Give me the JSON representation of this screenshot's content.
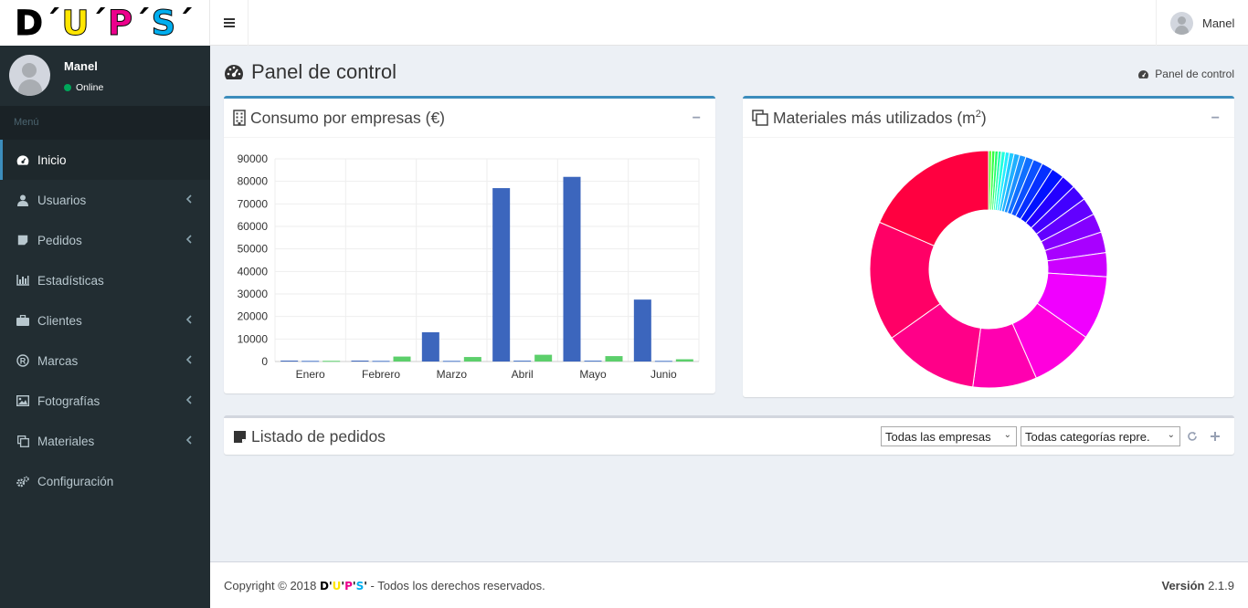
{
  "brand": {
    "logo_parts": [
      {
        "text": "D",
        "color": "#000000"
      },
      {
        "text": "´",
        "color": "#000000"
      },
      {
        "text": "U",
        "color": "#ffe600"
      },
      {
        "text": "´",
        "color": "#000000"
      },
      {
        "text": "P",
        "color": "#ec008c"
      },
      {
        "text": "´",
        "color": "#000000"
      },
      {
        "text": "S",
        "color": "#00aeef"
      },
      {
        "text": "´",
        "color": "#000000"
      }
    ]
  },
  "navbar": {
    "user_name": "Manel"
  },
  "sidebar": {
    "user_name": "Manel",
    "status": "Online",
    "menu_header": "Menú",
    "items": [
      {
        "label": "Inicio",
        "icon": "dashboard-icon",
        "active": true,
        "caret": false
      },
      {
        "label": "Usuarios",
        "icon": "user-icon",
        "active": false,
        "caret": true
      },
      {
        "label": "Pedidos",
        "icon": "sticky-note-icon",
        "active": false,
        "caret": true
      },
      {
        "label": "Estadísticas",
        "icon": "bar-chart-icon",
        "active": false,
        "caret": false
      },
      {
        "label": "Clientes",
        "icon": "briefcase-icon",
        "active": false,
        "caret": true
      },
      {
        "label": "Marcas",
        "icon": "registered-icon",
        "active": false,
        "caret": true
      },
      {
        "label": "Fotografías",
        "icon": "image-icon",
        "active": false,
        "caret": true
      },
      {
        "label": "Materiales",
        "icon": "clone-icon",
        "active": false,
        "caret": true
      },
      {
        "label": "Configuración",
        "icon": "cogs-icon",
        "active": false,
        "caret": false
      }
    ]
  },
  "page": {
    "title": "Panel de control",
    "breadcrumb": "Panel de control"
  },
  "consumo_box": {
    "title": "Consumo por empresas (€)",
    "collapse_label": "−"
  },
  "materiales_box": {
    "title_main": "Materiales más utilizados (m",
    "title_sup": "2",
    "title_end": ")",
    "collapse_label": "−"
  },
  "pedidos_box": {
    "title": "Listado de pedidos",
    "filter_empresas": "Todas las empresas",
    "filter_categorias": "Todas categorías repre.",
    "refresh_icon": "refresh-icon",
    "add_icon": "plus-icon"
  },
  "footer": {
    "copyright": "Copyright © 2018",
    "rights": " - Todos los derechos reservados.",
    "version_label": "Versión",
    "version_value": "2.1.9"
  },
  "chart_data": [
    {
      "type": "bar",
      "categories": [
        "Enero",
        "Febrero",
        "Marzo",
        "Abril",
        "Mayo",
        "Junio"
      ],
      "ylim": [
        0,
        90000
      ],
      "yticks": [
        0,
        10000,
        20000,
        30000,
        40000,
        50000,
        60000,
        70000,
        80000,
        90000
      ],
      "grid": true,
      "series": [
        {
          "color": "#3c66bd",
          "values": [
            400,
            400,
            13000,
            77000,
            82000,
            27500
          ]
        },
        {
          "color": "#4a78cc",
          "values": [
            300,
            300,
            300,
            400,
            400,
            300
          ]
        },
        {
          "color": "#5ccf6b",
          "values": [
            300,
            2200,
            2000,
            3000,
            2400,
            1000
          ]
        }
      ]
    },
    {
      "type": "pie",
      "donut": true,
      "values": [
        0.4,
        0.4,
        0.4,
        0.4,
        0.5,
        0.5,
        0.6,
        0.7,
        0.8,
        1.0,
        1.2,
        1.4,
        1.6,
        1.8,
        2.0,
        2.2,
        2.4,
        2.6,
        3.0,
        8.0,
        8.0,
        8.0,
        12.0,
        15.0,
        17.0
      ],
      "colors": [
        "#66ff33",
        "#33ff44",
        "#22ff66",
        "#22ffaa",
        "#22ffdd",
        "#22eeff",
        "#22ccff",
        "#1fb0ff",
        "#1a90ff",
        "#1070ff",
        "#0b50ff",
        "#0530ff",
        "#0012ff",
        "#2400ff",
        "#4200ff",
        "#6200ff",
        "#8400ff",
        "#a800ff",
        "#cc00ff",
        "#f000ff",
        "#ff00dd",
        "#ff00b0",
        "#ff0088",
        "#ff0066",
        "#ff0040"
      ]
    }
  ]
}
